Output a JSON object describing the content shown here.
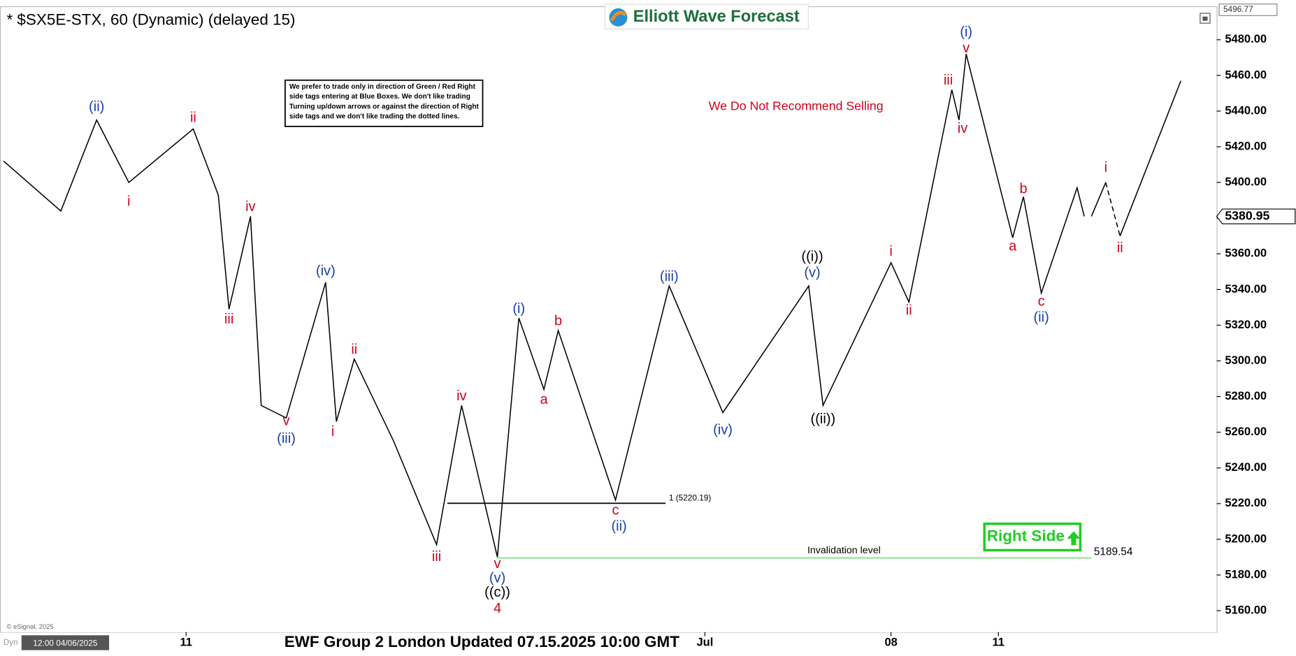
{
  "chart_data": {
    "type": "line",
    "title": "* $SX5E-STX, 60 (Dynamic) (delayed 15)",
    "brand": "Elliott Wave Forecast",
    "note": [
      "We prefer to trade only in direction of Green / Red Right",
      "side tags entering at Blue Boxes. We don't like trading",
      "Turning up/down arrows or against the direction of Right",
      "side tags and we don't like trading the dotted lines."
    ],
    "warning": "We Do Not Recommend Selling",
    "right_side": "Right Side",
    "footer": "EWF Group 2 London Updated 07.15.2025 10:00 GMT",
    "copyright": "© eSignal, 2025",
    "start_stamp": "12:00 04/06/2025",
    "mode": "Dyn",
    "xlim": [
      0,
      340
    ],
    "ylim": [
      5148,
      5497
    ],
    "xticks": [
      {
        "value": 52,
        "label": "11"
      },
      {
        "value": 197,
        "label": "Jul"
      },
      {
        "value": 249,
        "label": "08"
      },
      {
        "value": 279,
        "label": "11"
      }
    ],
    "yticks": [
      {
        "value": 5160,
        "label": "5160.00"
      },
      {
        "value": 5180,
        "label": "5180.00"
      },
      {
        "value": 5200,
        "label": "5200.00"
      },
      {
        "value": 5220,
        "label": "5220.00"
      },
      {
        "value": 5240,
        "label": "5240.00"
      },
      {
        "value": 5260,
        "label": "5260.00"
      },
      {
        "value": 5280,
        "label": "5280.00"
      },
      {
        "value": 5300,
        "label": "5300.00"
      },
      {
        "value": 5320,
        "label": "5320.00"
      },
      {
        "value": 5340,
        "label": "5340.00"
      },
      {
        "value": 5360,
        "label": "5360.00"
      },
      {
        "value": 5380,
        "label": "5380.00"
      },
      {
        "value": 5400,
        "label": "5400.00"
      },
      {
        "value": 5420,
        "label": "5420.00"
      },
      {
        "value": 5440,
        "label": "5440.00"
      },
      {
        "value": 5460,
        "label": "5460.00"
      },
      {
        "value": 5480,
        "label": "5480.00"
      }
    ],
    "top_price": 5496.77,
    "last_price": 5380.95,
    "series": [
      {
        "color": "#000000",
        "dash": false,
        "x": [
          1,
          17,
          27,
          36,
          54,
          61,
          64,
          70,
          73,
          80,
          91,
          94,
          99,
          110,
          122,
          129,
          139,
          145,
          152,
          156,
          172,
          187,
          202,
          226,
          230,
          249,
          254,
          266,
          268,
          270,
          283,
          286,
          291,
          301,
          303
        ],
        "values": [
          5412,
          5384,
          5435,
          5400,
          5430,
          5393,
          5329,
          5381,
          5275,
          5268,
          5344,
          5266,
          5301,
          5255,
          5197,
          5275,
          5190,
          5324,
          5284,
          5317,
          5222,
          5342,
          5271,
          5342,
          5275,
          5355,
          5333,
          5452,
          5435,
          5472,
          5369,
          5392,
          5338,
          5397,
          5381
        ]
      },
      {
        "color": "#000000",
        "dash": false,
        "x": [
          305,
          309
        ],
        "values": [
          5381,
          5400
        ]
      },
      {
        "color": "#000000",
        "dash": true,
        "x": [
          309,
          313
        ],
        "values": [
          5400,
          5370
        ]
      },
      {
        "color": "#000000",
        "dash": false,
        "x": [
          313,
          330
        ],
        "values": [
          5370,
          5457
        ]
      }
    ],
    "levels": [
      {
        "value": 5220.19,
        "x": [
          125,
          186
        ],
        "color": "#000000",
        "label": "1 (5220.19)"
      },
      {
        "value": 5189.54,
        "x": [
          139,
          305
        ],
        "color": "#7ee07e",
        "label": "Invalidation level",
        "value_label": "5189.54"
      }
    ],
    "annotations": [
      {
        "text": "(ii)",
        "x": 27,
        "y": 5442,
        "color": "#1a3fa8"
      },
      {
        "text": "i",
        "x": 36,
        "y": 5389,
        "color": "#d0021b"
      },
      {
        "text": "ii",
        "x": 54,
        "y": 5436,
        "color": "#d0021b"
      },
      {
        "text": "iv",
        "x": 70,
        "y": 5386,
        "color": "#d0021b"
      },
      {
        "text": "iii",
        "x": 64,
        "y": 5323,
        "color": "#d0021b"
      },
      {
        "text": "(iv)",
        "x": 91,
        "y": 5350,
        "color": "#1a3fa8"
      },
      {
        "text": "v",
        "x": 80,
        "y": 5266,
        "color": "#d0021b"
      },
      {
        "text": "(iii)",
        "x": 80,
        "y": 5256,
        "color": "#1a3fa8"
      },
      {
        "text": "i",
        "x": 93,
        "y": 5260,
        "color": "#d0021b"
      },
      {
        "text": "ii",
        "x": 99,
        "y": 5306,
        "color": "#d0021b"
      },
      {
        "text": "iv",
        "x": 129,
        "y": 5280,
        "color": "#d0021b"
      },
      {
        "text": "iii",
        "x": 122,
        "y": 5190,
        "color": "#d0021b"
      },
      {
        "text": "v",
        "x": 139,
        "y": 5186,
        "color": "#d0021b"
      },
      {
        "text": "(v)",
        "x": 139,
        "y": 5178,
        "color": "#1a3fa8"
      },
      {
        "text": "((c))",
        "x": 139,
        "y": 5170,
        "color": "#000000"
      },
      {
        "text": "4",
        "x": 139,
        "y": 5161,
        "color": "#d0021b"
      },
      {
        "text": "(i)",
        "x": 145,
        "y": 5329,
        "color": "#1a3fa8"
      },
      {
        "text": "a",
        "x": 152,
        "y": 5278,
        "color": "#d0021b"
      },
      {
        "text": "b",
        "x": 156,
        "y": 5322,
        "color": "#d0021b"
      },
      {
        "text": "c",
        "x": 172,
        "y": 5216,
        "color": "#d0021b"
      },
      {
        "text": "(ii)",
        "x": 173,
        "y": 5207,
        "color": "#1a3fa8"
      },
      {
        "text": "(iii)",
        "x": 187,
        "y": 5347,
        "color": "#1a3fa8"
      },
      {
        "text": "(iv)",
        "x": 202,
        "y": 5261,
        "color": "#1a3fa8"
      },
      {
        "text": "((i))",
        "x": 227,
        "y": 5358,
        "color": "#000000"
      },
      {
        "text": "(v)",
        "x": 227,
        "y": 5349,
        "color": "#1a3fa8"
      },
      {
        "text": "((ii))",
        "x": 230,
        "y": 5267,
        "color": "#000000"
      },
      {
        "text": "i",
        "x": 249,
        "y": 5361,
        "color": "#d0021b"
      },
      {
        "text": "ii",
        "x": 254,
        "y": 5328,
        "color": "#d0021b"
      },
      {
        "text": "iii",
        "x": 265,
        "y": 5457,
        "color": "#d0021b"
      },
      {
        "text": "iv",
        "x": 269,
        "y": 5430,
        "color": "#d0021b"
      },
      {
        "text": "v",
        "x": 270,
        "y": 5475,
        "color": "#d0021b"
      },
      {
        "text": "(i)",
        "x": 270,
        "y": 5484,
        "color": "#1a3fa8"
      },
      {
        "text": "a",
        "x": 283,
        "y": 5364,
        "color": "#d0021b"
      },
      {
        "text": "b",
        "x": 286,
        "y": 5396,
        "color": "#d0021b"
      },
      {
        "text": "c",
        "x": 291,
        "y": 5333,
        "color": "#d0021b"
      },
      {
        "text": "(ii)",
        "x": 291,
        "y": 5324,
        "color": "#1a3fa8"
      },
      {
        "text": "i",
        "x": 309,
        "y": 5408,
        "color": "#d0021b"
      },
      {
        "text": "ii",
        "x": 313,
        "y": 5363,
        "color": "#d0021b"
      }
    ]
  }
}
